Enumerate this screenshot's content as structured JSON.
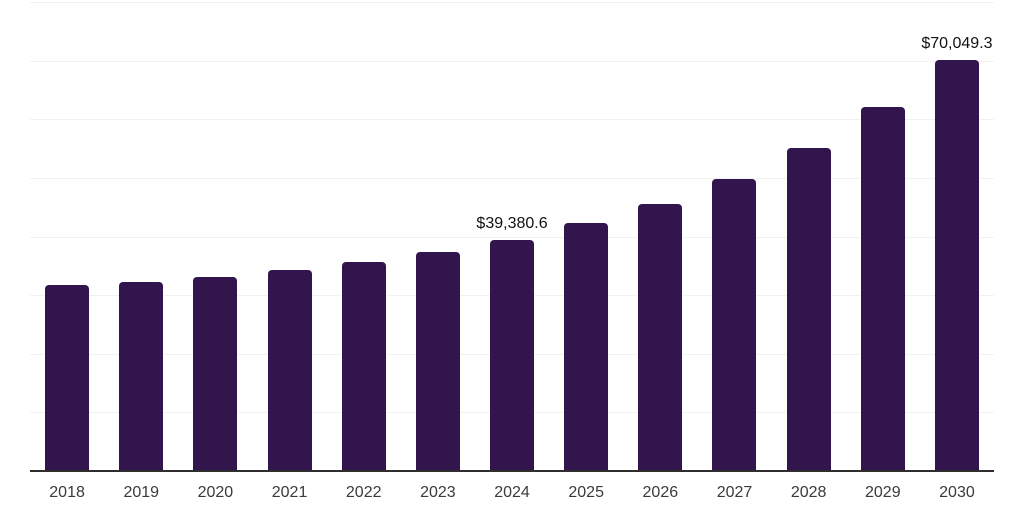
{
  "chart_data": {
    "type": "bar",
    "title": "",
    "xlabel": "",
    "ylabel": "",
    "categories": [
      "2018",
      "2019",
      "2020",
      "2021",
      "2022",
      "2023",
      "2024",
      "2025",
      "2026",
      "2027",
      "2028",
      "2029",
      "2030"
    ],
    "values": [
      31700,
      32200,
      33100,
      34300,
      35700,
      37400,
      39380.6,
      42300,
      45500,
      49800,
      55100,
      62100,
      70049.3
    ],
    "point_labels": [
      "",
      "",
      "",
      "",
      "",
      "",
      "$39,380.6",
      "",
      "",
      "",
      "",
      "",
      "$70,049.3"
    ],
    "ylim": [
      0,
      80000
    ],
    "gridline_interval": 10000,
    "grid": "horizontal",
    "legend": "none",
    "y_tick_labels_visible": false,
    "colors": {
      "bar": "#33154D",
      "gridline": "#F1F1F1",
      "axis": "#2E2E2E",
      "value_label": "#111111",
      "tick_label": "#3A3A3A",
      "background": "#FFFFFF"
    }
  }
}
